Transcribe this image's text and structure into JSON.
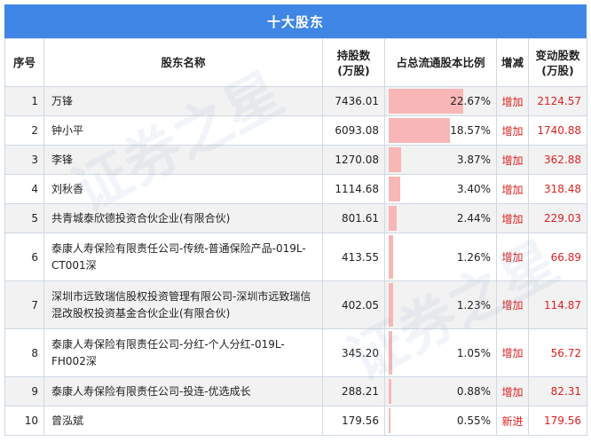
{
  "table_title": "十大股东",
  "headers": {
    "rank": "序号",
    "name": "股东名称",
    "shares": "持股数\n(万股)",
    "pct": "占总流通股本比例",
    "type": "增减",
    "change": "变动股数\n(万股)"
  },
  "colors": {
    "header_bg": "#3f86e6",
    "bar": "#f8b6b6",
    "increase": "#e02020"
  },
  "rows": [
    {
      "rank": "1",
      "name": "万锋",
      "shares": "7436.01",
      "pct": "22.67%",
      "pct_value": 22.67,
      "type": "增加",
      "change": "2124.57"
    },
    {
      "rank": "2",
      "name": "钟小平",
      "shares": "6093.08",
      "pct": "18.57%",
      "pct_value": 18.57,
      "type": "增加",
      "change": "1740.88"
    },
    {
      "rank": "3",
      "name": "李锋",
      "shares": "1270.08",
      "pct": "3.87%",
      "pct_value": 3.87,
      "type": "增加",
      "change": "362.88"
    },
    {
      "rank": "4",
      "name": "刘秋香",
      "shares": "1114.68",
      "pct": "3.40%",
      "pct_value": 3.4,
      "type": "增加",
      "change": "318.48"
    },
    {
      "rank": "5",
      "name": "共青城泰欣德投资合伙企业(有限合伙)",
      "shares": "801.61",
      "pct": "2.44%",
      "pct_value": 2.44,
      "type": "增加",
      "change": "229.03"
    },
    {
      "rank": "6",
      "name": "泰康人寿保险有限责任公司-传统-普通保险产品-019L-CT001深",
      "shares": "413.55",
      "pct": "1.26%",
      "pct_value": 1.26,
      "type": "增加",
      "change": "66.89"
    },
    {
      "rank": "7",
      "name": "深圳市远致瑞信股权投资管理有限公司-深圳市远致瑞信混改股权投资基金合伙企业(有限合伙)",
      "shares": "402.05",
      "pct": "1.23%",
      "pct_value": 1.23,
      "type": "增加",
      "change": "114.87"
    },
    {
      "rank": "8",
      "name": "泰康人寿保险有限责任公司-分红-个人分红-019L-FH002深",
      "shares": "345.20",
      "pct": "1.05%",
      "pct_value": 1.05,
      "type": "增加",
      "change": "56.72"
    },
    {
      "rank": "9",
      "name": "泰康人寿保险有限责任公司-投连-优选成长",
      "shares": "288.21",
      "pct": "0.88%",
      "pct_value": 0.88,
      "type": "增加",
      "change": "82.31"
    },
    {
      "rank": "10",
      "name": "曾泓斌",
      "shares": "179.56",
      "pct": "0.55%",
      "pct_value": 0.55,
      "type": "新进",
      "change": "179.56"
    }
  ],
  "watermark": "证券之星"
}
